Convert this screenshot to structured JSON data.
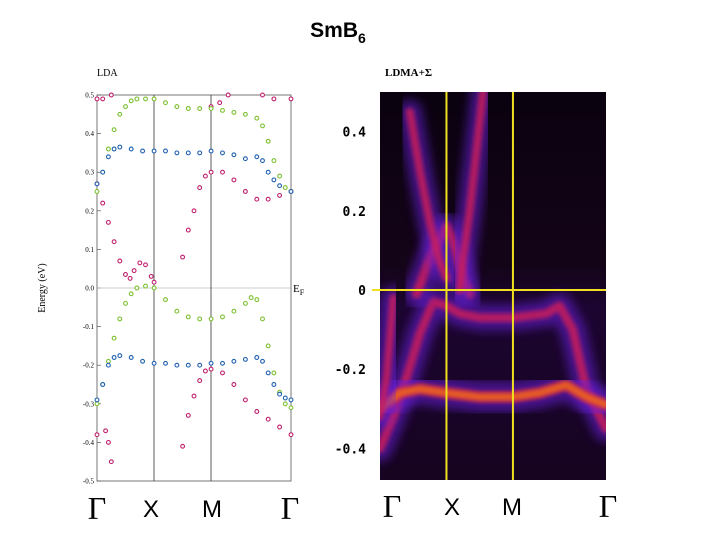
{
  "figure": {
    "title": "SmB",
    "title_subscript": "6"
  },
  "chart_data": [
    {
      "type": "line",
      "panel_label": "LDA",
      "ylabel": "Energy (eV)",
      "ylim": [
        -0.5,
        0.5
      ],
      "yticks": [
        "0.5",
        "0.4",
        "0.3",
        "0.2",
        "0.1",
        "0.0",
        "-0.1",
        "-0.2",
        "-0.3",
        "-0.4",
        "-0.5"
      ],
      "fermi_label": "E",
      "fermi_label_subscript": "F",
      "k_points": [
        {
          "label": "Γ",
          "k": 0.0
        },
        {
          "label": "X",
          "k": 1.0
        },
        {
          "label": "M",
          "k": 2.0
        },
        {
          "label": "Γ",
          "k": 3.4
        }
      ],
      "series": [
        {
          "color": "#c0206c",
          "points": [
            [
              0.0,
              0.49
            ],
            [
              0.1,
              0.49
            ],
            [
              0.25,
              0.5
            ],
            [
              0.0,
              0.27
            ],
            [
              0.1,
              0.22
            ],
            [
              0.2,
              0.17
            ],
            [
              0.3,
              0.12
            ],
            [
              0.4,
              0.07
            ],
            [
              0.5,
              0.035
            ],
            [
              0.58,
              0.025
            ],
            [
              0.65,
              0.045
            ],
            [
              0.75,
              0.065
            ],
            [
              0.85,
              0.06
            ],
            [
              0.95,
              0.03
            ],
            [
              1.0,
              0.015
            ],
            [
              0.0,
              -0.38
            ],
            [
              0.15,
              -0.37
            ],
            [
              0.2,
              -0.4
            ],
            [
              0.25,
              -0.45
            ],
            [
              1.5,
              0.08
            ],
            [
              1.6,
              0.15
            ],
            [
              1.7,
              0.2
            ],
            [
              1.8,
              0.26
            ],
            [
              1.9,
              0.29
            ],
            [
              2.0,
              0.3
            ],
            [
              2.2,
              0.3
            ],
            [
              2.4,
              0.28
            ],
            [
              2.6,
              0.25
            ],
            [
              2.8,
              0.23
            ],
            [
              3.0,
              0.23
            ],
            [
              3.2,
              0.24
            ],
            [
              3.4,
              0.25
            ],
            [
              1.5,
              -0.41
            ],
            [
              1.6,
              -0.33
            ],
            [
              1.7,
              -0.28
            ],
            [
              1.8,
              -0.24
            ],
            [
              1.9,
              -0.215
            ],
            [
              2.0,
              -0.21
            ],
            [
              2.2,
              -0.22
            ],
            [
              2.4,
              -0.25
            ],
            [
              2.6,
              -0.29
            ],
            [
              2.8,
              -0.32
            ],
            [
              3.0,
              -0.34
            ],
            [
              3.2,
              -0.36
            ],
            [
              3.4,
              -0.38
            ],
            [
              2.0,
              0.47
            ],
            [
              2.15,
              0.48
            ],
            [
              2.3,
              0.5
            ],
            [
              2.9,
              0.5
            ],
            [
              3.1,
              0.49
            ],
            [
              3.4,
              0.49
            ]
          ]
        },
        {
          "color": "#7cc030",
          "points": [
            [
              0.0,
              0.25
            ],
            [
              0.1,
              0.3
            ],
            [
              0.2,
              0.36
            ],
            [
              0.3,
              0.41
            ],
            [
              0.4,
              0.45
            ],
            [
              0.5,
              0.47
            ],
            [
              0.6,
              0.485
            ],
            [
              0.7,
              0.49
            ],
            [
              0.85,
              0.49
            ],
            [
              1.0,
              0.49
            ],
            [
              1.2,
              0.48
            ],
            [
              1.4,
              0.47
            ],
            [
              1.6,
              0.465
            ],
            [
              1.8,
              0.465
            ],
            [
              2.0,
              0.465
            ],
            [
              2.2,
              0.46
            ],
            [
              2.4,
              0.455
            ],
            [
              2.6,
              0.45
            ],
            [
              2.8,
              0.44
            ],
            [
              2.9,
              0.42
            ],
            [
              3.0,
              0.38
            ],
            [
              3.1,
              0.33
            ],
            [
              3.2,
              0.29
            ],
            [
              3.3,
              0.26
            ],
            [
              3.4,
              0.25
            ],
            [
              0.0,
              -0.3
            ],
            [
              0.1,
              -0.25
            ],
            [
              0.2,
              -0.19
            ],
            [
              0.3,
              -0.13
            ],
            [
              0.4,
              -0.08
            ],
            [
              0.5,
              -0.04
            ],
            [
              0.6,
              -0.015
            ],
            [
              0.7,
              0.0
            ],
            [
              0.85,
              0.005
            ],
            [
              1.0,
              0.0
            ],
            [
              1.2,
              -0.03
            ],
            [
              1.4,
              -0.06
            ],
            [
              1.6,
              -0.075
            ],
            [
              1.8,
              -0.08
            ],
            [
              2.0,
              -0.08
            ],
            [
              2.2,
              -0.075
            ],
            [
              2.4,
              -0.06
            ],
            [
              2.6,
              -0.04
            ],
            [
              2.7,
              -0.025
            ],
            [
              2.8,
              -0.03
            ],
            [
              2.9,
              -0.08
            ],
            [
              3.0,
              -0.15
            ],
            [
              3.1,
              -0.22
            ],
            [
              3.2,
              -0.27
            ],
            [
              3.3,
              -0.3
            ],
            [
              3.4,
              -0.31
            ]
          ]
        },
        {
          "color": "#2060b0",
          "points": [
            [
              0.0,
              0.27
            ],
            [
              0.1,
              0.3
            ],
            [
              0.2,
              0.34
            ],
            [
              0.3,
              0.36
            ],
            [
              0.4,
              0.365
            ],
            [
              0.6,
              0.36
            ],
            [
              0.8,
              0.355
            ],
            [
              1.0,
              0.355
            ],
            [
              1.2,
              0.355
            ],
            [
              1.4,
              0.35
            ],
            [
              1.6,
              0.35
            ],
            [
              1.8,
              0.35
            ],
            [
              2.0,
              0.355
            ],
            [
              2.2,
              0.35
            ],
            [
              2.4,
              0.345
            ],
            [
              2.6,
              0.335
            ],
            [
              2.8,
              0.34
            ],
            [
              2.9,
              0.33
            ],
            [
              3.0,
              0.3
            ],
            [
              3.1,
              0.28
            ],
            [
              3.2,
              0.265
            ],
            [
              3.4,
              0.25
            ],
            [
              0.0,
              -0.29
            ],
            [
              0.1,
              -0.25
            ],
            [
              0.2,
              -0.2
            ],
            [
              0.3,
              -0.18
            ],
            [
              0.4,
              -0.175
            ],
            [
              0.6,
              -0.18
            ],
            [
              0.8,
              -0.19
            ],
            [
              1.0,
              -0.195
            ],
            [
              1.2,
              -0.195
            ],
            [
              1.4,
              -0.2
            ],
            [
              1.6,
              -0.2
            ],
            [
              1.8,
              -0.2
            ],
            [
              2.0,
              -0.195
            ],
            [
              2.2,
              -0.195
            ],
            [
              2.4,
              -0.19
            ],
            [
              2.6,
              -0.185
            ],
            [
              2.8,
              -0.18
            ],
            [
              2.9,
              -0.19
            ],
            [
              3.0,
              -0.22
            ],
            [
              3.1,
              -0.25
            ],
            [
              3.2,
              -0.275
            ],
            [
              3.3,
              -0.285
            ],
            [
              3.4,
              -0.29
            ]
          ]
        }
      ]
    },
    {
      "type": "heatmap",
      "panel_label": "LDMA+Σ",
      "ylim": [
        -0.48,
        0.5
      ],
      "yticks": [
        "0.4",
        "0.2",
        "0",
        "-0.2",
        "-0.4"
      ],
      "ytick_values": [
        0.4,
        0.2,
        0.0,
        -0.2,
        -0.4
      ],
      "k_points": [
        {
          "label": "Γ",
          "k": 0.0
        },
        {
          "label": "X",
          "k": 1.0
        },
        {
          "label": "M",
          "k": 2.0
        },
        {
          "label": "Γ",
          "k": 3.4
        }
      ],
      "fermi_energy": 0.0,
      "guide_line_color": "#f0e020",
      "spectral_bands": [
        {
          "intensity": 0.55,
          "points": [
            [
              0.0,
              -0.4
            ],
            [
              0.2,
              -0.32
            ],
            [
              0.4,
              -0.22
            ],
            [
              0.6,
              -0.11
            ],
            [
              0.8,
              -0.03
            ],
            [
              1.0,
              -0.04
            ],
            [
              1.2,
              -0.06
            ],
            [
              1.5,
              -0.07
            ],
            [
              2.0,
              -0.07
            ],
            [
              2.5,
              -0.06
            ],
            [
              2.7,
              -0.04
            ],
            [
              2.9,
              -0.1
            ],
            [
              3.1,
              -0.25
            ],
            [
              3.4,
              -0.35
            ]
          ]
        },
        {
          "intensity": 0.9,
          "points": [
            [
              0.0,
              -0.3
            ],
            [
              0.3,
              -0.26
            ],
            [
              0.6,
              -0.25
            ],
            [
              1.0,
              -0.26
            ],
            [
              1.5,
              -0.27
            ],
            [
              2.0,
              -0.27
            ],
            [
              2.4,
              -0.26
            ],
            [
              2.8,
              -0.24
            ],
            [
              3.1,
              -0.27
            ],
            [
              3.4,
              -0.29
            ]
          ]
        },
        {
          "intensity": 0.6,
          "points": [
            [
              0.55,
              -0.01
            ],
            [
              0.75,
              0.08
            ],
            [
              0.9,
              0.13
            ],
            [
              1.0,
              0.16
            ],
            [
              1.1,
              0.12
            ],
            [
              1.25,
              0.03
            ],
            [
              1.35,
              -0.01
            ]
          ]
        },
        {
          "intensity": 0.45,
          "points": [
            [
              0.45,
              0.45
            ],
            [
              0.6,
              0.3
            ],
            [
              0.75,
              0.17
            ],
            [
              0.9,
              0.07
            ],
            [
              1.0,
              0.03
            ]
          ]
        },
        {
          "intensity": 0.45,
          "points": [
            [
              1.55,
              0.5
            ],
            [
              1.45,
              0.35
            ],
            [
              1.35,
              0.2
            ],
            [
              1.25,
              0.08
            ],
            [
              1.2,
              0.0
            ]
          ]
        },
        {
          "intensity": 0.4,
          "points": [
            [
              0.0,
              -0.32
            ],
            [
              0.1,
              -0.22
            ],
            [
              0.15,
              -0.12
            ],
            [
              0.2,
              -0.02
            ]
          ]
        }
      ]
    }
  ]
}
